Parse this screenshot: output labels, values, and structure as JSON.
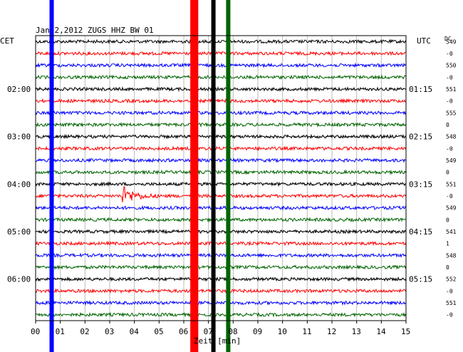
{
  "chart_data": {
    "type": "line",
    "title": "Jan 2,2012  ZUGS HHZ BW 01",
    "left_tz": "CET",
    "right_tz": "UTC",
    "dc_label": "DC",
    "xlabel": "Zeit [min]",
    "xlim": [
      0,
      15
    ],
    "x_ticks": [
      "00",
      "01",
      "02",
      "03",
      "04",
      "05",
      "06",
      "07",
      "08",
      "09",
      "10",
      "11",
      "12",
      "13",
      "14",
      "15"
    ],
    "left_hour_labels": [
      {
        "trace": 4,
        "label": "02:00"
      },
      {
        "trace": 8,
        "label": "03:00"
      },
      {
        "trace": 12,
        "label": "04:00"
      },
      {
        "trace": 16,
        "label": "05:00"
      },
      {
        "trace": 20,
        "label": "06:00"
      }
    ],
    "right_hour_labels": [
      {
        "trace": 4,
        "label": "01:15"
      },
      {
        "trace": 8,
        "label": "02:15"
      },
      {
        "trace": 12,
        "label": "03:15"
      },
      {
        "trace": 16,
        "label": "04:15"
      },
      {
        "trace": 20,
        "label": "05:15"
      }
    ],
    "trace_colors": [
      "#000000",
      "#ff0000",
      "#0000ff",
      "#006400"
    ],
    "dc_values": [
      "549",
      "-0",
      "550",
      "-0",
      "551",
      "-0",
      "555",
      "0",
      "548",
      "-0",
      "549",
      "0",
      "551",
      "-0",
      "549",
      "0",
      "541",
      "1",
      "548",
      "0",
      "552",
      "-0",
      "551",
      "-0"
    ],
    "event": {
      "trace": 13,
      "x_start_min": 3.5,
      "x_end_min": 5.2,
      "amplitude_label": ""
    },
    "saturated_bars": [
      {
        "x_min": 0.65,
        "color": "#0000ff"
      },
      {
        "x_min": 6.35,
        "color": "#ff0000"
      },
      {
        "x_min": 6.5,
        "color": "#ff0000"
      },
      {
        "x_min": 7.2,
        "color": "#000000"
      },
      {
        "x_min": 7.8,
        "color": "#006400"
      }
    ],
    "ylim_traces": 24,
    "grid": true,
    "legend": "none"
  }
}
